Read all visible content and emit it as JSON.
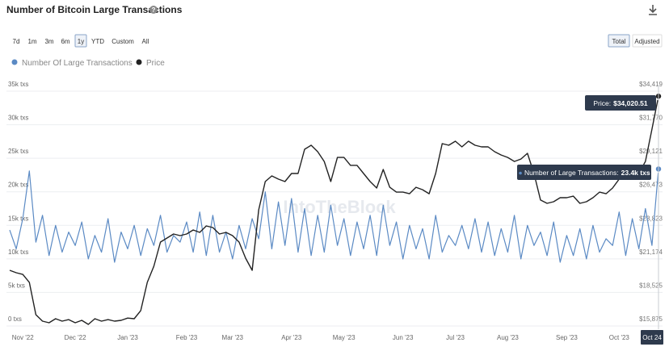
{
  "header": {
    "title": "Number of Bitcoin Large Transactions",
    "ranges": [
      "7d",
      "1m",
      "3m",
      "6m",
      "1y",
      "YTD",
      "Custom",
      "All"
    ],
    "modes": [
      "Total",
      "Adjusted"
    ]
  },
  "chart_data": {
    "type": "line",
    "watermark": "IntoTheBlock",
    "categories": [
      null,
      null,
      "Nov '22",
      null,
      null,
      null,
      null,
      null,
      null,
      null,
      "Dec '22",
      null,
      null,
      null,
      null,
      null,
      null,
      null,
      "Jan '23",
      null,
      null,
      null,
      null,
      null,
      null,
      null,
      null,
      "Feb '23",
      null,
      null,
      null,
      null,
      null,
      null,
      "Mar '23",
      null,
      null,
      null,
      null,
      null,
      null,
      null,
      null,
      "Apr '23",
      null,
      null,
      null,
      null,
      null,
      null,
      null,
      "May '23",
      null,
      null,
      null,
      null,
      null,
      null,
      null,
      null,
      "Jun '23",
      null,
      null,
      null,
      null,
      null,
      null,
      null,
      "Jul '23",
      null,
      null,
      null,
      null,
      null,
      null,
      null,
      "Aug '23",
      null,
      null,
      null,
      null,
      null,
      null,
      null,
      null,
      "Sep '23",
      null,
      null,
      null,
      null,
      null,
      null,
      null,
      "Oct '23",
      null,
      null,
      null,
      null,
      null,
      "Oct 24"
    ],
    "series": [
      {
        "name": "Number Of Large Transactions",
        "color": "#5b8ac4",
        "axis": "y",
        "values": [
          14300,
          11500,
          16000,
          23100,
          12500,
          16500,
          10500,
          15000,
          11000,
          14000,
          12000,
          15500,
          10000,
          13500,
          11000,
          16000,
          9500,
          14000,
          11500,
          15000,
          10500,
          14500,
          12000,
          16500,
          11000,
          13500,
          12500,
          15500,
          11000,
          17000,
          10500,
          16500,
          11000,
          14000,
          10000,
          15000,
          11500,
          16000,
          13000,
          20000,
          11500,
          18500,
          12000,
          19000,
          11000,
          17500,
          10500,
          16500,
          11000,
          18000,
          12000,
          16000,
          10500,
          15500,
          11500,
          16500,
          10500,
          18000,
          12000,
          15500,
          10000,
          15000,
          11500,
          14500,
          10000,
          16500,
          11000,
          13500,
          12000,
          15000,
          11500,
          16000,
          11000,
          15500,
          10500,
          14500,
          11000,
          16500,
          10000,
          15000,
          12000,
          14000,
          10500,
          15500,
          9500,
          13500,
          10500,
          14500,
          10000,
          15000,
          11000,
          13000,
          12000,
          17000,
          10500,
          16000,
          11500,
          17500,
          12000,
          23400
        ]
      },
      {
        "name": "Price",
        "color": "#222222",
        "axis": "y2",
        "values": [
          20270,
          20080,
          19950,
          19320,
          16770,
          16260,
          16130,
          16450,
          16260,
          16380,
          16130,
          16320,
          16000,
          16450,
          16260,
          16380,
          16260,
          16320,
          16500,
          16450,
          17090,
          19320,
          20590,
          22500,
          22820,
          23140,
          23010,
          23140,
          23460,
          23270,
          23780,
          23650,
          23140,
          23270,
          23010,
          22500,
          21230,
          20270,
          25050,
          27280,
          27730,
          27470,
          27280,
          27920,
          27920,
          29830,
          30150,
          29640,
          28870,
          27280,
          29190,
          29190,
          28560,
          28560,
          27920,
          27280,
          26770,
          28240,
          26830,
          26450,
          26450,
          26320,
          26830,
          26640,
          26320,
          27920,
          30280,
          30150,
          30470,
          30020,
          30470,
          30150,
          30020,
          30020,
          29640,
          29380,
          29190,
          28870,
          29060,
          29510,
          27920,
          25820,
          25560,
          25690,
          26010,
          26010,
          26130,
          25560,
          25690,
          26010,
          26450,
          26320,
          26770,
          27470,
          27600,
          27730,
          27920,
          28870,
          31420,
          34020.51
        ]
      }
    ],
    "ylim": [
      0,
      35000
    ],
    "yticks": [
      {
        "value": 0,
        "label": "0 txs"
      },
      {
        "value": 5000,
        "label": "5k txs"
      },
      {
        "value": 10000,
        "label": "10k txs"
      },
      {
        "value": 15000,
        "label": "15k txs"
      },
      {
        "value": 20000,
        "label": "20k txs"
      },
      {
        "value": 25000,
        "label": "25k txs"
      },
      {
        "value": 30000,
        "label": "30k txs"
      },
      {
        "value": 35000,
        "label": "35k txs"
      }
    ],
    "y2lim": [
      15875,
      34419
    ],
    "y2ticks": [
      {
        "value": 15875,
        "label": "$15,875"
      },
      {
        "value": 18525,
        "label": "$18,525"
      },
      {
        "value": 21174,
        "label": "$21,174"
      },
      {
        "value": 23823,
        "label": "$23,823"
      },
      {
        "value": 26473,
        "label": "$26,473"
      },
      {
        "value": 29121,
        "label": "$29,121"
      },
      {
        "value": 31770,
        "label": "$31,770"
      },
      {
        "value": 34419,
        "label": "$34,419"
      }
    ],
    "grid": true,
    "tooltips": [
      {
        "label": "Price:",
        "value": "$34,020.51"
      },
      {
        "label": "Number of Large Transactions:",
        "value": "23.4k txs"
      }
    ]
  }
}
